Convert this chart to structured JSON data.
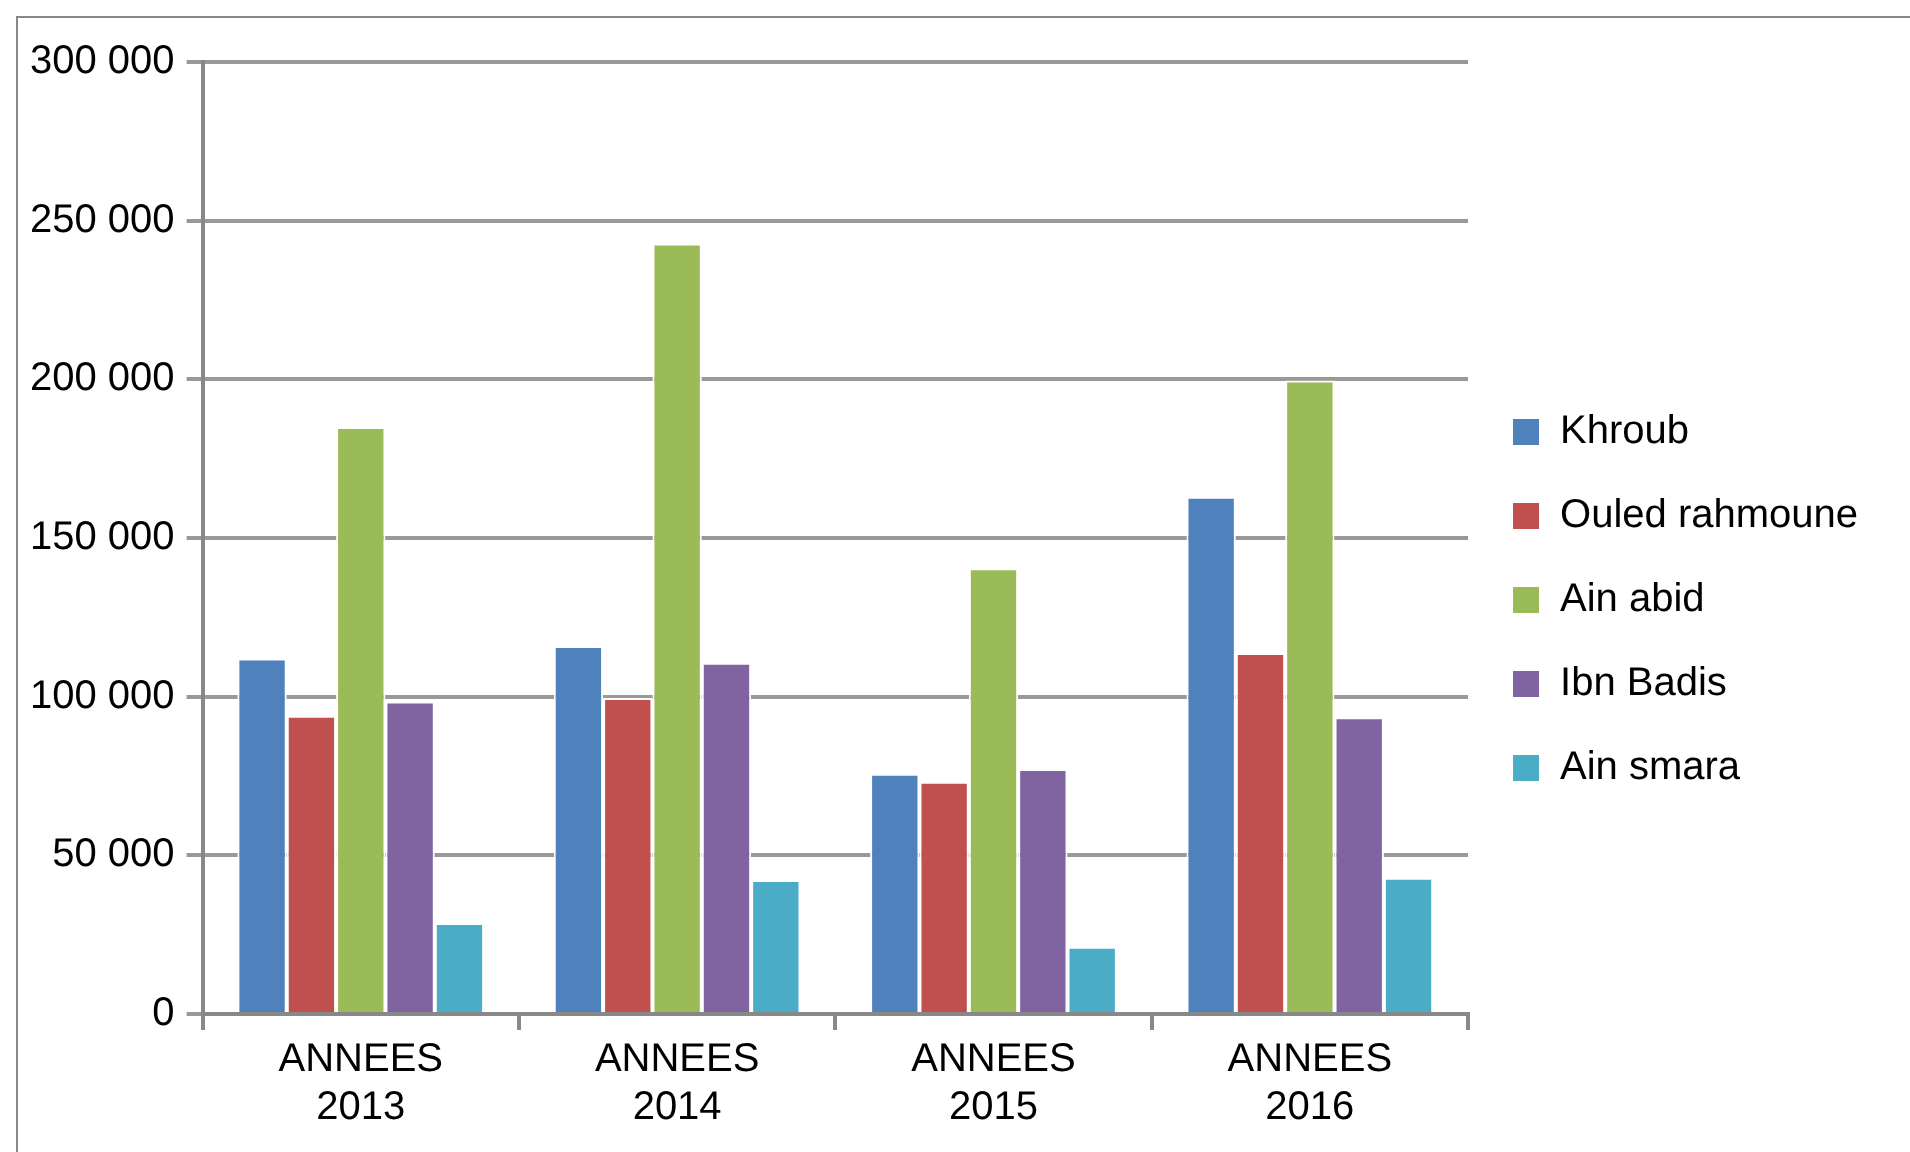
{
  "chart_data": {
    "type": "bar",
    "categories": [
      "ANNEES 2013",
      "ANNEES 2014",
      "ANNEES 2015",
      "ANNEES 2016"
    ],
    "series": [
      {
        "name": "Khroub",
        "color": "#4f81bd",
        "values": [
          112000,
          116000,
          75700,
          163000
        ]
      },
      {
        "name": "Ouled rahmoune",
        "color": "#c0504d",
        "values": [
          94000,
          99600,
          73200,
          113800
        ]
      },
      {
        "name": "Ain abid",
        "color": "#9bbb59",
        "values": [
          185000,
          242800,
          140500,
          199600
        ]
      },
      {
        "name": "Ibn Badis",
        "color": "#8064a2",
        "values": [
          98500,
          110700,
          77200,
          93500
        ]
      },
      {
        "name": "Ain smara",
        "color": "#4bacc6",
        "values": [
          28700,
          42200,
          21200,
          42900
        ]
      }
    ],
    "ylim": [
      0,
      300000
    ],
    "yticks": [
      {
        "value": 0,
        "label": "0"
      },
      {
        "value": 50000,
        "label": "50 000"
      },
      {
        "value": 100000,
        "label": "100 000"
      },
      {
        "value": 150000,
        "label": "150 000"
      },
      {
        "value": 200000,
        "label": "200 000"
      },
      {
        "value": 250000,
        "label": "250 000"
      },
      {
        "value": 300000,
        "label": "300 000"
      }
    ],
    "grid": "y",
    "legend": "right"
  }
}
